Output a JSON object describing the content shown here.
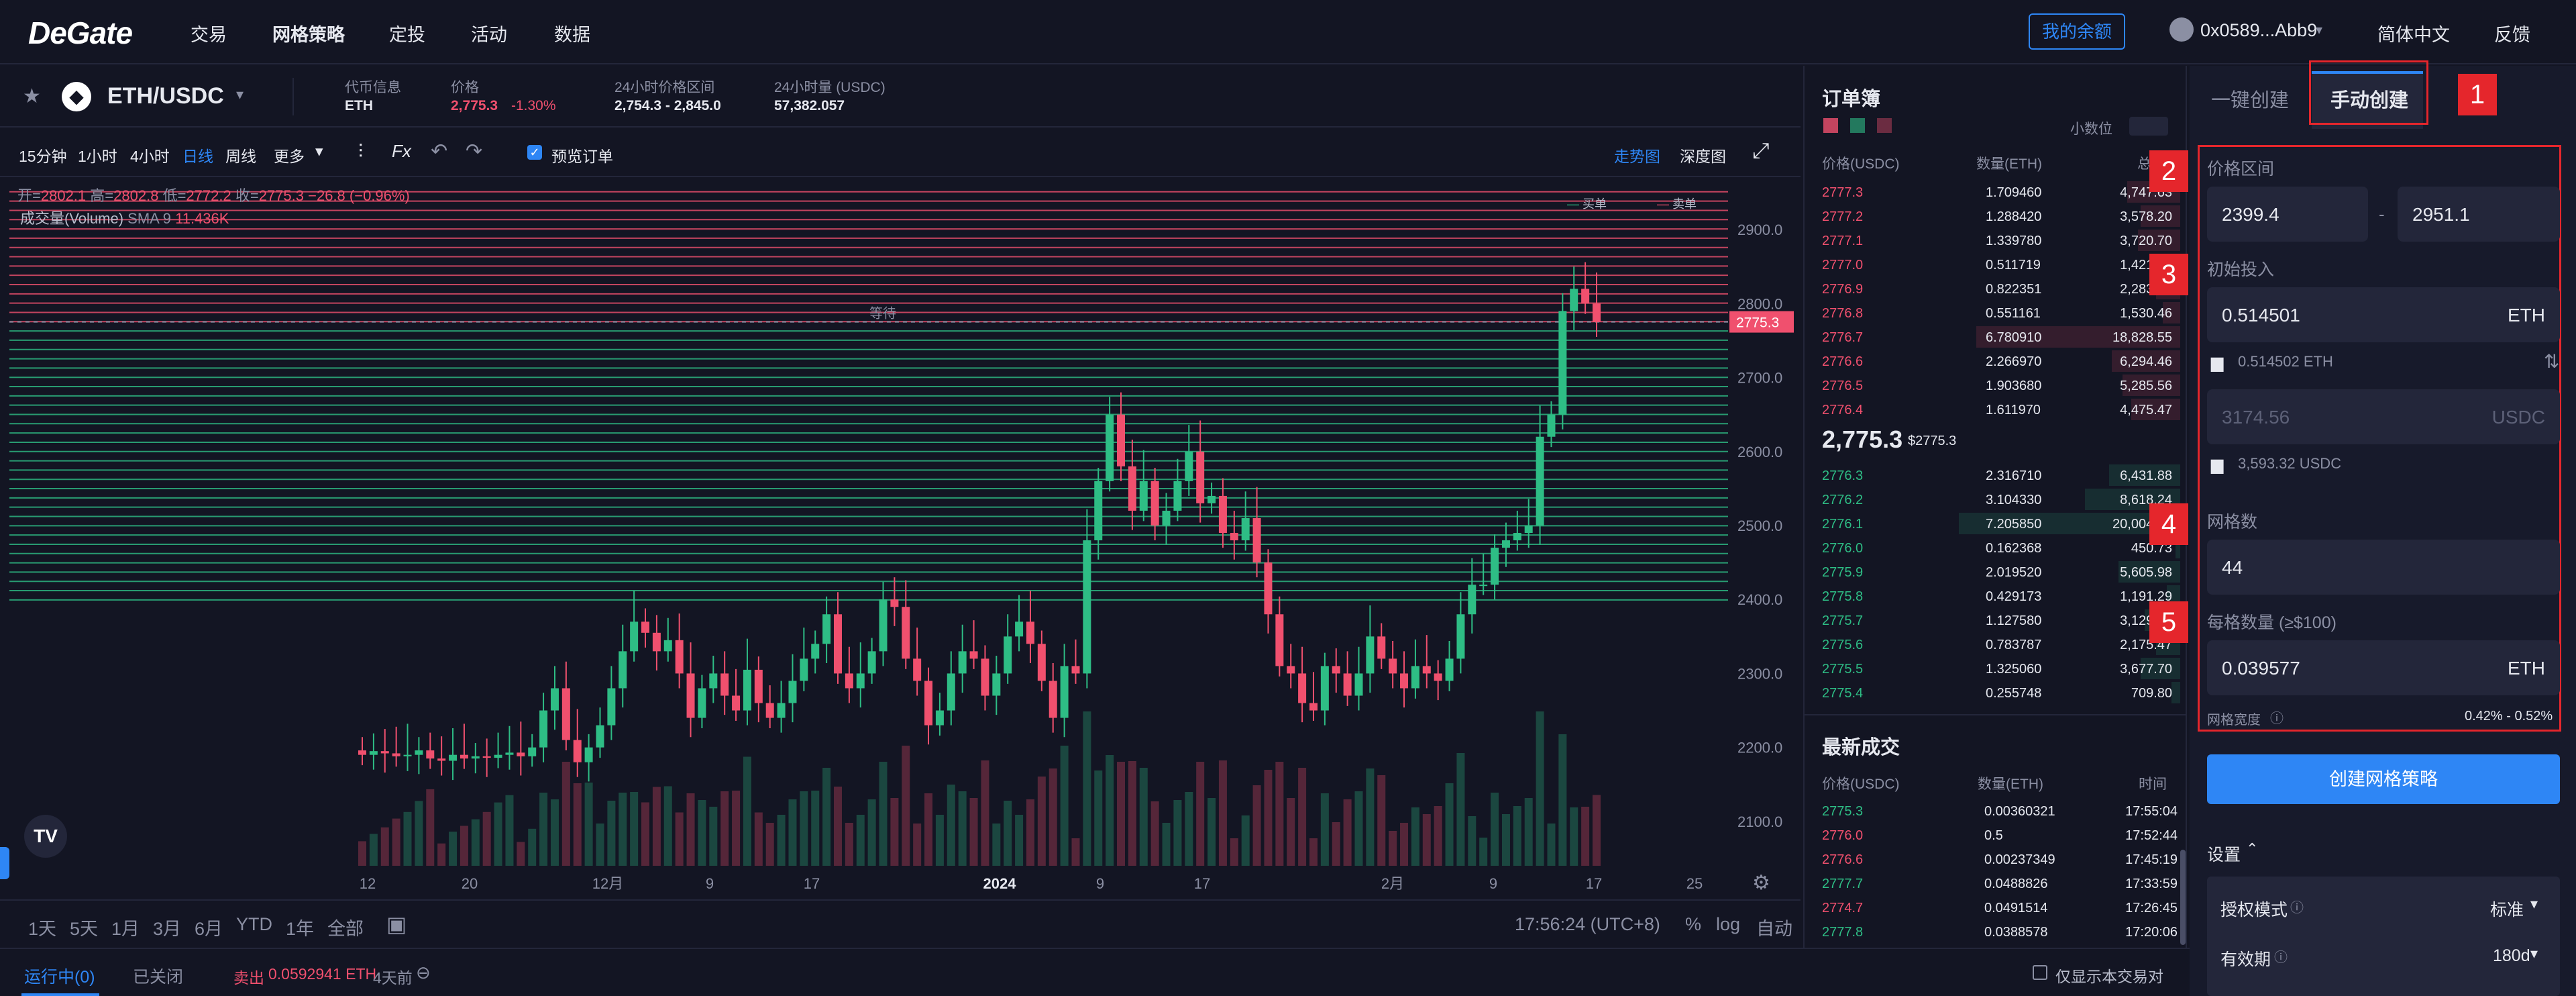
{
  "nav": {
    "logo": "DeGate",
    "links": [
      "交易",
      "网格策略",
      "定投",
      "活动",
      "数据"
    ],
    "balance_btn": "我的余额",
    "account": "0x0589...Abb9",
    "language": "简体中文",
    "feedback": "反馈"
  },
  "ticker": {
    "pair": "ETH/USDC",
    "token_info_label": "代币信息",
    "token_info_value": "ETH",
    "price_label": "价格",
    "price_value": "2,775.3",
    "price_change": "-1.30%",
    "range_label": "24小时价格区间",
    "range_value": "2,754.3 - 2,845.0",
    "volume_label": "24小时量 (USDC)",
    "volume_value": "57,382.057"
  },
  "toolbar": {
    "intervals": [
      "15分钟",
      "1小时",
      "4小时",
      "日线",
      "周线",
      "更多"
    ],
    "active_interval": "日线",
    "fx": "Fx",
    "preview_label": "预览订单",
    "trend_btn": "走势图",
    "depth_btn": "深度图"
  },
  "chart_overlay": {
    "ohlc_open_label": "开=",
    "ohlc_open": "2802.1",
    "ohlc_high_label": "高=",
    "ohlc_high": "2802.8",
    "ohlc_low_label": "低=",
    "ohlc_low": "2772.2",
    "ohlc_close_label": "收=",
    "ohlc_close": "2775.3",
    "ohlc_change": "−26.8 (−0.96%)",
    "volume_label": "成交量(Volume)",
    "volume_sma": "SMA 9",
    "volume_value": "11.436K",
    "legend_buy": "买单",
    "legend_sell": "卖单",
    "waiting_label": "等待",
    "current_price_tag": "2775.3"
  },
  "chart_data": {
    "type": "candlestick",
    "y_ticks": [
      "2900.0",
      "2800.0",
      "2700.0",
      "2600.0",
      "2500.0",
      "2400.0",
      "2300.0",
      "2200.0",
      "2100.0"
    ],
    "ylim": [
      2040,
      2960
    ],
    "x_ticks": [
      "12",
      "20",
      "12月",
      "9",
      "17",
      "2024",
      "9",
      "17",
      "2月",
      "9",
      "17",
      "25"
    ],
    "grid_lower": 2399.4,
    "grid_upper": 2951.1,
    "grid_count": 44,
    "current_price": 2775.3,
    "candles_close": [
      2190,
      2195,
      2192,
      2188,
      2190,
      2196,
      2185,
      2182,
      2190,
      2185,
      2188,
      2186,
      2190,
      2193,
      2188,
      2200,
      2250,
      2280,
      2210,
      2180,
      2200,
      2230,
      2280,
      2330,
      2370,
      2355,
      2330,
      2345,
      2300,
      2240,
      2280,
      2300,
      2270,
      2250,
      2305,
      2260,
      2240,
      2260,
      2290,
      2320,
      2340,
      2380,
      2300,
      2280,
      2300,
      2330,
      2400,
      2390,
      2320,
      2290,
      2230,
      2250,
      2300,
      2330,
      2320,
      2270,
      2300,
      2350,
      2370,
      2340,
      2290,
      2240,
      2310,
      2300,
      2480,
      2560,
      2650,
      2580,
      2520,
      2560,
      2500,
      2520,
      2560,
      2600,
      2530,
      2540,
      2490,
      2480,
      2510,
      2450,
      2380,
      2310,
      2300,
      2260,
      2250,
      2310,
      2300,
      2270,
      2300,
      2350,
      2320,
      2300,
      2280,
      2310,
      2300,
      2290,
      2320,
      2380,
      2420,
      2420,
      2470,
      2480,
      2490,
      2500,
      2620,
      2650,
      2790,
      2820,
      2800,
      2775
    ],
    "volume_label": "成交量(Volume)",
    "time_ranges": [
      "1天",
      "5天",
      "1月",
      "3月",
      "6月",
      "YTD",
      "1年",
      "全部"
    ],
    "timestamp": "17:56:24 (UTC+8)",
    "scale_options": [
      "%",
      "log",
      "自动"
    ]
  },
  "orderbook": {
    "title": "订单簿",
    "decimals_label": "小数位",
    "headers": [
      "价格(USDC)",
      "数量(ETH)",
      "总额"
    ],
    "asks": [
      [
        "2777.3",
        "1.709460",
        "4,747.63",
        0.24
      ],
      [
        "2777.2",
        "1.288420",
        "3,578.20",
        0.18
      ],
      [
        "2777.1",
        "1.339780",
        "3,720.70",
        0.19
      ],
      [
        "2777.0",
        "0.511719",
        "1,421.04",
        0.07
      ],
      [
        "2776.9",
        "0.822351",
        "2,283.58",
        0.11
      ],
      [
        "2776.8",
        "0.551161",
        "1,530.46",
        0.08
      ],
      [
        "2776.7",
        "6.780910",
        "18,828.55",
        0.92
      ],
      [
        "2776.6",
        "2.266970",
        "6,294.46",
        0.31
      ],
      [
        "2776.5",
        "1.903680",
        "5,285.56",
        0.26
      ],
      [
        "2776.4",
        "1.611970",
        "4,475.47",
        0.22
      ]
    ],
    "mid_price": "2,775.3",
    "mid_price_usd": "$2775.3",
    "bids": [
      [
        "2776.3",
        "2.316710",
        "6,431.88",
        0.32
      ],
      [
        "2776.2",
        "3.104330",
        "8,618.24",
        0.43
      ],
      [
        "2776.1",
        "7.205850",
        "20,004.16",
        1.0
      ],
      [
        "2776.0",
        "0.162368",
        "450.73",
        0.02
      ],
      [
        "2775.9",
        "2.019520",
        "5,605.98",
        0.28
      ],
      [
        "2775.8",
        "0.429173",
        "1,191.29",
        0.06
      ],
      [
        "2775.7",
        "1.127580",
        "3,129.82",
        0.16
      ],
      [
        "2775.6",
        "0.783787",
        "2,175.47",
        0.11
      ],
      [
        "2775.5",
        "1.325060",
        "3,677.70",
        0.18
      ],
      [
        "2775.4",
        "0.255748",
        "709.80",
        0.04
      ]
    ]
  },
  "trades": {
    "title": "最新成交",
    "headers": [
      "价格(USDC)",
      "数量(ETH)",
      "时间"
    ],
    "rows": [
      [
        "2775.3",
        "0.00360321",
        "17:55:04",
        "up"
      ],
      [
        "2776.0",
        "0.5",
        "17:52:44",
        "down"
      ],
      [
        "2776.6",
        "0.00237349",
        "17:45:19",
        "down"
      ],
      [
        "2777.7",
        "0.0488826",
        "17:33:59",
        "up"
      ],
      [
        "2774.7",
        "0.0491514",
        "17:26:45",
        "down"
      ],
      [
        "2777.8",
        "0.0388578",
        "17:20:06",
        "up"
      ]
    ]
  },
  "grid_form": {
    "tab_auto": "一键创建",
    "tab_manual": "手动创建",
    "price_range_label": "价格区间",
    "price_low": "2399.4",
    "price_high": "2951.1",
    "range_sep": "-",
    "initial_label": "初始投入",
    "eth_amount": "0.514501",
    "eth_unit": "ETH",
    "eth_balance": "0.514502 ETH",
    "usdc_placeholder": "3174.56",
    "usdc_unit": "USDC",
    "usdc_balance": "3,593.32 USDC",
    "grid_count_label": "网格数",
    "grid_count": "44",
    "per_grid_label": "每格数量 (≥$100)",
    "per_grid_value": "0.039577",
    "per_grid_unit": "ETH",
    "grid_width_label": "网格宽度",
    "grid_width_value": "0.42% - 0.52%",
    "create_btn": "创建网格策略",
    "settings_label": "设置",
    "auth_mode_label": "授权模式",
    "auth_mode_value": "标准",
    "validity_label": "有效期",
    "validity_value": "180d"
  },
  "annotations": [
    "1",
    "2",
    "3",
    "4",
    "5"
  ],
  "bottom": {
    "tab_running": "运行中(0)",
    "tab_closed": "已关闭",
    "sell_label": "卖出",
    "sell_amount": "0.0592941 ETH",
    "sell_time": "4天前",
    "only_pair_label": "仅显示本交易对"
  },
  "colors": {
    "background": "#131523",
    "up": "#2ebd85",
    "down": "#f0506e",
    "accent": "#2e86f5",
    "annotation": "#e5262c"
  }
}
